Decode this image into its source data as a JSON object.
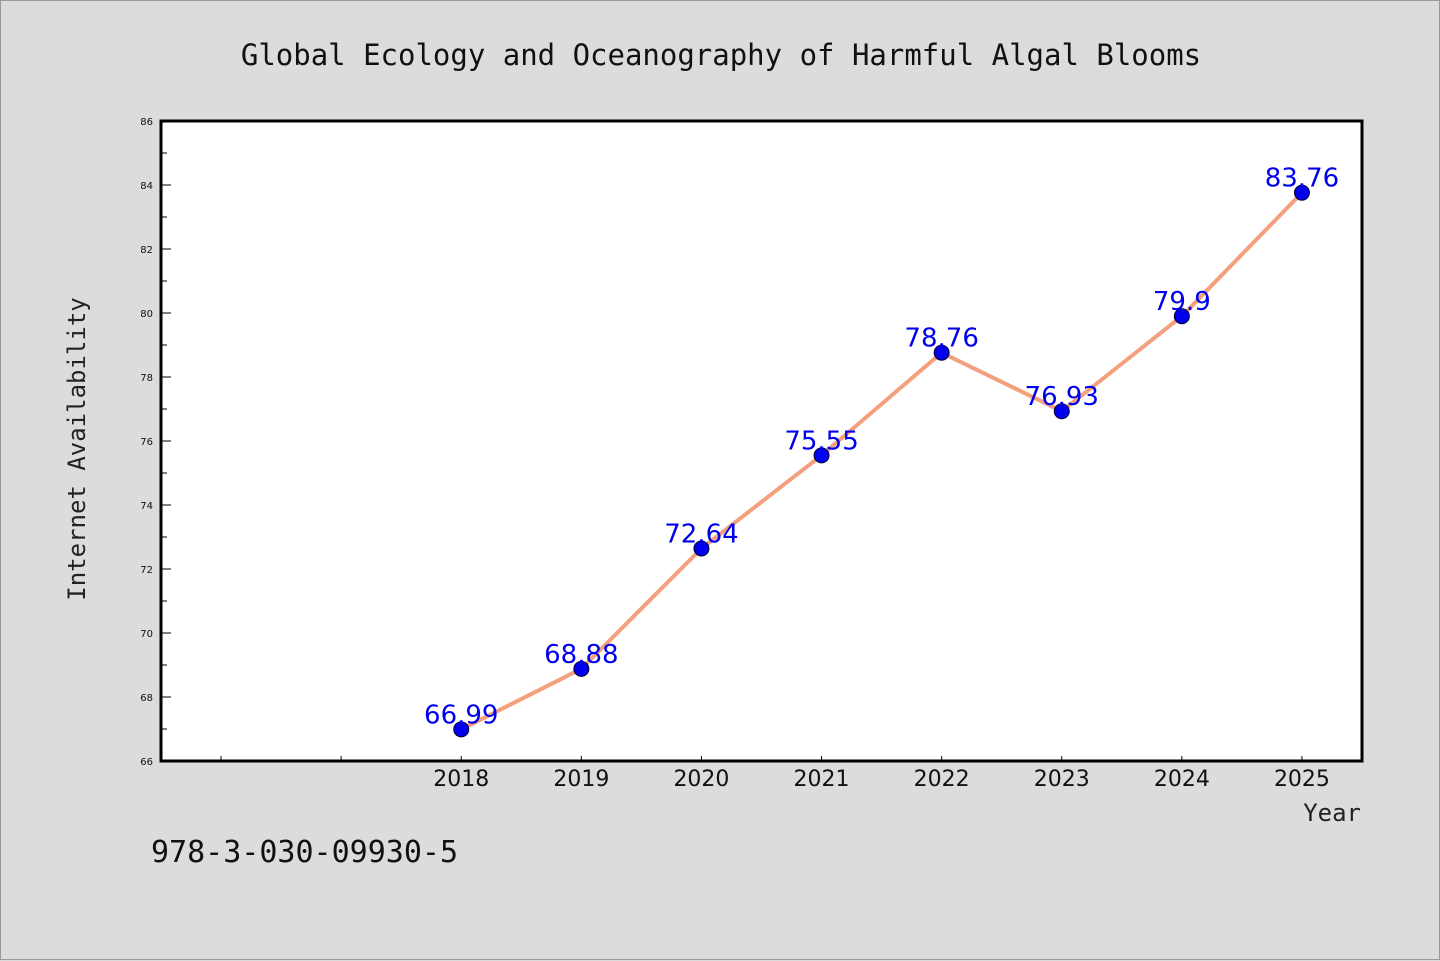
{
  "chart_data": {
    "type": "line",
    "title": "Global Ecology and Oceanography of Harmful Algal Blooms",
    "xlabel": "Year",
    "ylabel": "Internet Availability",
    "categories": [
      "2018",
      "2019",
      "2020",
      "2021",
      "2022",
      "2023",
      "2024",
      "2025"
    ],
    "series": [
      {
        "values": [
          66.99,
          68.88,
          72.64,
          75.55,
          78.76,
          76.93,
          79.9,
          83.76
        ]
      }
    ],
    "data_labels": [
      "66.99",
      "68.88",
      "72.64",
      "75.55",
      "78.76",
      "76.93",
      "79.9",
      "83.76"
    ],
    "ylim": [
      66,
      86
    ],
    "yticks": [
      "66",
      "68",
      "70",
      "72",
      "74",
      "76",
      "78",
      "80",
      "82",
      "84",
      "86"
    ],
    "x_slots": 10,
    "first_category_slot": 2,
    "grid": false,
    "legend": "none",
    "colors": {
      "line": "#f4a07e",
      "marker": "#0000ee",
      "data_label": "#0000ee",
      "plot_background": "#ffffff",
      "page_background": "#dcdcdc"
    }
  },
  "footer": {
    "isbn": "978-3-030-09930-5"
  }
}
